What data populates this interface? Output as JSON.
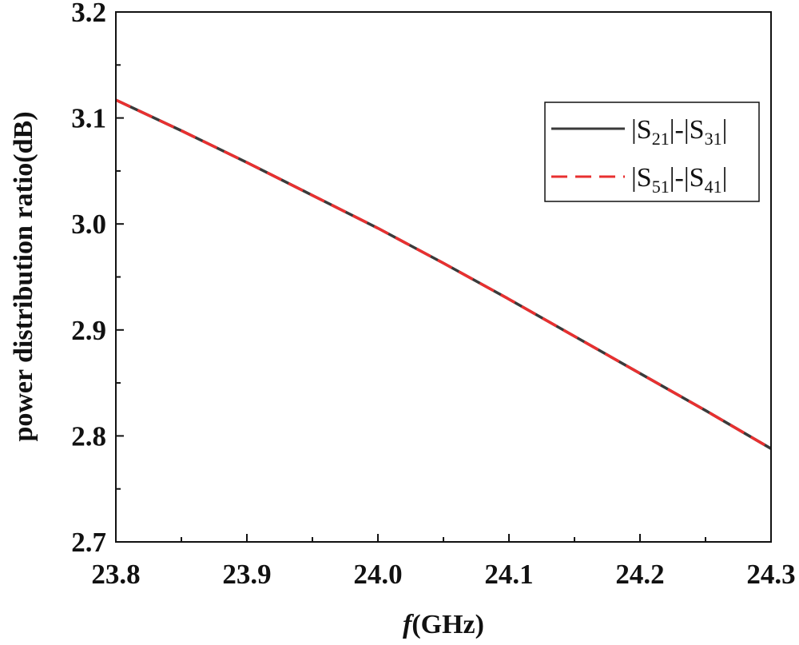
{
  "chart_data": {
    "type": "line",
    "xlabel_italic": "f",
    "xlabel_rest": "(GHz)",
    "ylabel": "power distribution ratio(dB)",
    "xlim": [
      23.8,
      24.3
    ],
    "ylim": [
      2.7,
      3.2
    ],
    "x_ticks": [
      "23.8",
      "23.9",
      "24.0",
      "24.1",
      "24.2",
      "24.3"
    ],
    "y_ticks": [
      "2.7",
      "2.8",
      "2.9",
      "3.0",
      "3.1",
      "3.2"
    ],
    "grid": false,
    "legend_position": "upper-right",
    "series": [
      {
        "legend": {
          "p1": "|S",
          "s1": "21",
          "p2": "|-|S",
          "s2": "31",
          "p3": "|"
        },
        "color": "#3a3a3a",
        "dash": "solid",
        "x": [
          23.8,
          23.85,
          23.9,
          23.95,
          24.0,
          24.05,
          24.1,
          24.15,
          24.2,
          24.25,
          24.3
        ],
        "y": [
          3.117,
          3.088,
          3.058,
          3.027,
          2.996,
          2.963,
          2.929,
          2.894,
          2.859,
          2.824,
          2.788
        ]
      },
      {
        "legend": {
          "p1": "|S",
          "s1": "51",
          "p2": "|-|S",
          "s2": "41",
          "p3": "|"
        },
        "color": "#e83030",
        "dash": "dashed",
        "x": [
          23.8,
          23.85,
          23.9,
          23.95,
          24.0,
          24.05,
          24.1,
          24.15,
          24.2,
          24.25,
          24.3
        ],
        "y": [
          3.117,
          3.088,
          3.058,
          3.027,
          2.996,
          2.963,
          2.929,
          2.894,
          2.859,
          2.824,
          2.788
        ]
      }
    ]
  }
}
